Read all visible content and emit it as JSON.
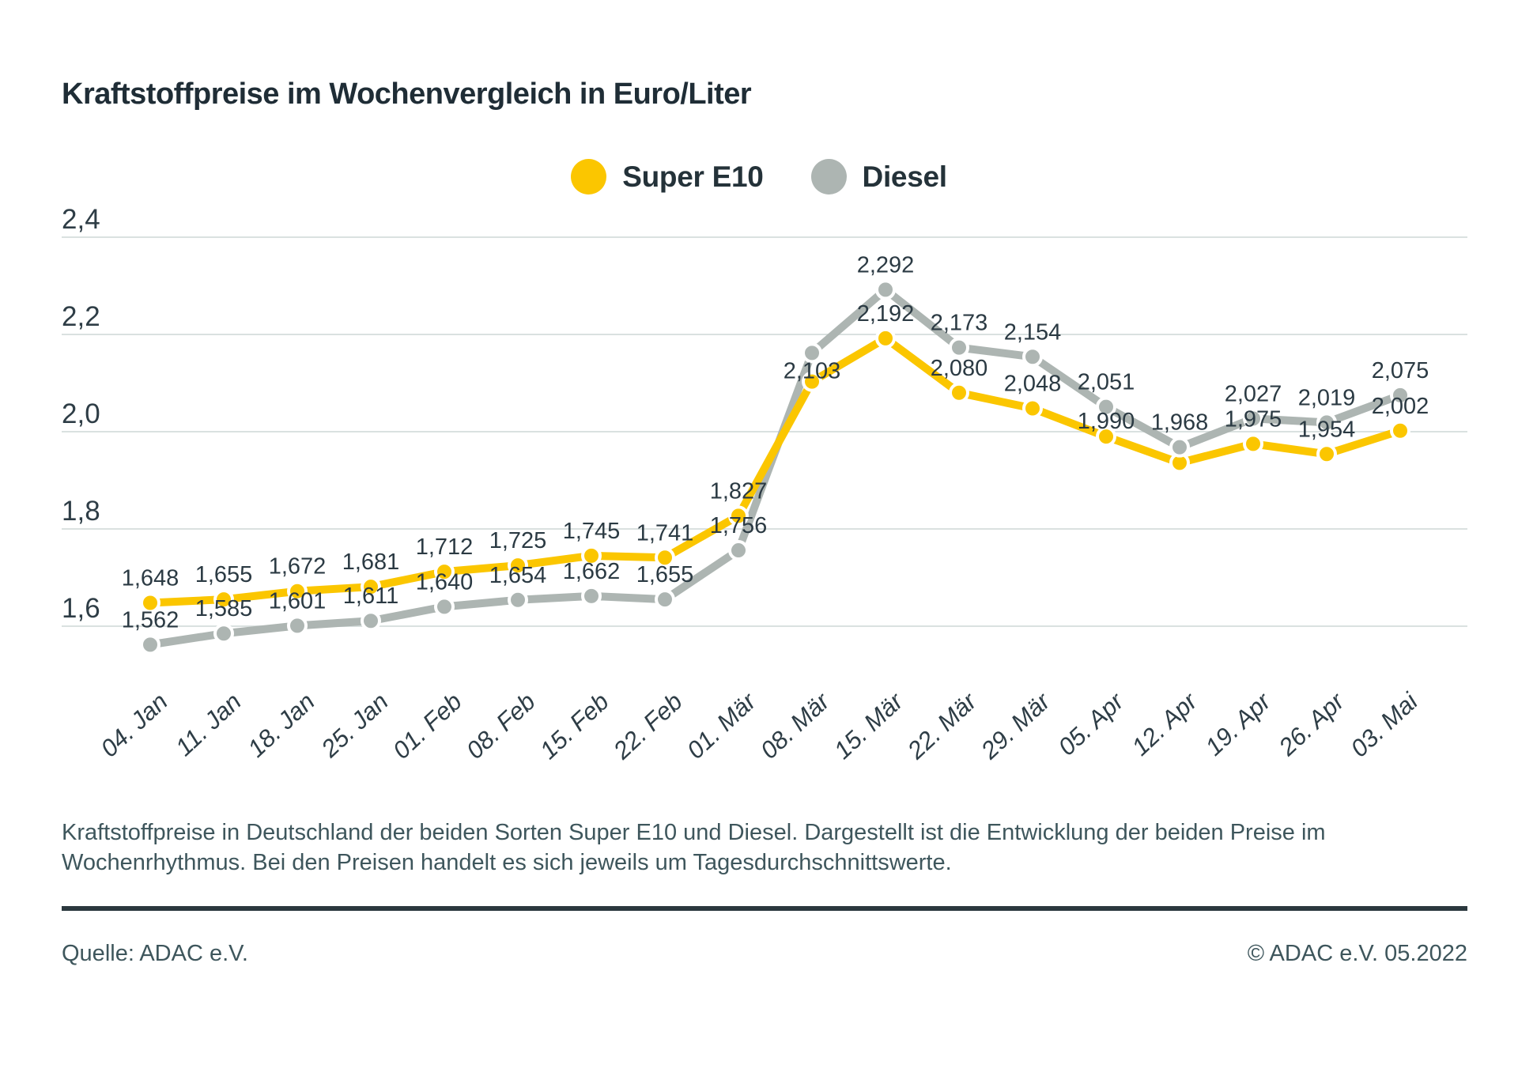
{
  "title": "Kraftstoffpreise im Wochenvergleich in Euro/Liter",
  "colors": {
    "super_e10": "#fbc600",
    "diesel": "#adb5b2",
    "text_dark": "#2b3a43",
    "text_muted": "#3e565c",
    "gridline": "#dae1e0",
    "divider": "#2b383e"
  },
  "chart_data": {
    "type": "line",
    "title": "Kraftstoffpreise im Wochenvergleich in Euro/Liter",
    "unit": "Euro/Liter",
    "grid": true,
    "legend_position": "top",
    "categories": [
      "04. Jan",
      "11. Jan",
      "18. Jan",
      "25. Jan",
      "01. Feb",
      "08. Feb",
      "15. Feb",
      "22. Feb",
      "01. Mär",
      "08. Mär",
      "15. Mär",
      "22. Mär",
      "29. Mär",
      "05. Apr",
      "12. Apr",
      "19. Apr",
      "26. Apr",
      "03. Mai"
    ],
    "y_axis": {
      "ticks": [
        "2,4",
        "2,2",
        "2,0",
        "1,8",
        "1,6"
      ],
      "tick_values": [
        2.4,
        2.2,
        2.0,
        1.8,
        1.6
      ],
      "min": 1.5,
      "max": 2.45
    },
    "series": [
      {
        "name": "Super E10",
        "color": "#fbc600",
        "values": [
          1.648,
          1.655,
          1.672,
          1.681,
          1.712,
          1.725,
          1.745,
          1.741,
          1.827,
          2.103,
          2.192,
          2.08,
          2.048,
          1.99,
          1.936,
          1.975,
          1.954,
          2.002
        ],
        "labels": [
          "1,648",
          "1,655",
          "1,672",
          "1,681",
          "1,712",
          "1,725",
          "1,745",
          "1,741",
          "1,827",
          "2,103",
          "2,192",
          "2,080",
          "2,048",
          "1,990",
          null,
          "1,975",
          "1,954",
          "2,002"
        ]
      },
      {
        "name": "Diesel",
        "color": "#adb5b2",
        "values": [
          1.562,
          1.585,
          1.601,
          1.611,
          1.64,
          1.654,
          1.662,
          1.655,
          1.756,
          2.162,
          2.292,
          2.173,
          2.154,
          2.051,
          1.968,
          2.027,
          2.019,
          2.075
        ],
        "labels": [
          "1,562",
          "1,585",
          "1,601",
          "1,611",
          "1,640",
          "1,654",
          "1,662",
          "1,655",
          "1,756",
          null,
          "2,292",
          "2,173",
          "2,154",
          "2,051",
          "1,968",
          "2,027",
          "2,019",
          "2,075"
        ]
      }
    ]
  },
  "footer": {
    "description_lines": [
      "Kraftstoffpreise in Deutschland der beiden Sorten Super E10 und Diesel. Dargestellt ist die Entwicklung der beiden Preise im",
      "Wochenrhythmus. Bei den Preisen handelt es sich jeweils um Tagesdurchschnittswerte."
    ],
    "source_left": "Quelle: ADAC e.V.",
    "source_right": "© ADAC e.V. 05.2022"
  }
}
